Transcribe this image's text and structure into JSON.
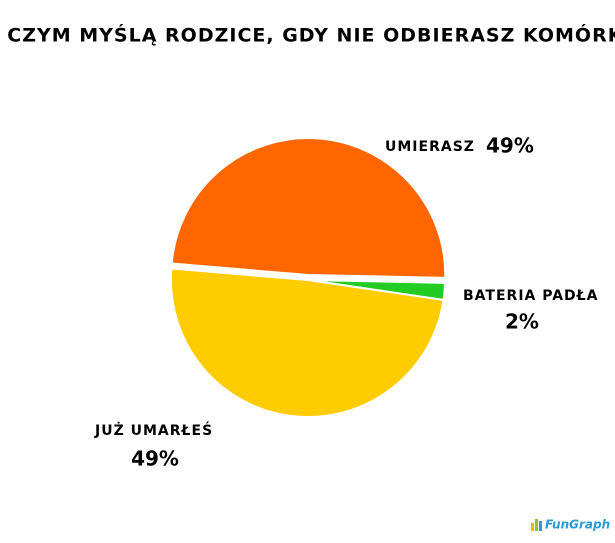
{
  "chart_data": {
    "type": "pie",
    "title": "O CZYM MYŚLĄ RODZICE, GDY NIE ODBIERASZ KOMÓRKI",
    "categories": [
      "UMIERASZ",
      "BATERIA PADŁA",
      "JUŻ UMARŁEŚ"
    ],
    "values": [
      49,
      2,
      49
    ],
    "value_labels": [
      "49%",
      "2%",
      "49%"
    ],
    "colors": [
      "#ff6600",
      "#22cc22",
      "#ffcc00"
    ],
    "watermark": "FunGraph"
  }
}
